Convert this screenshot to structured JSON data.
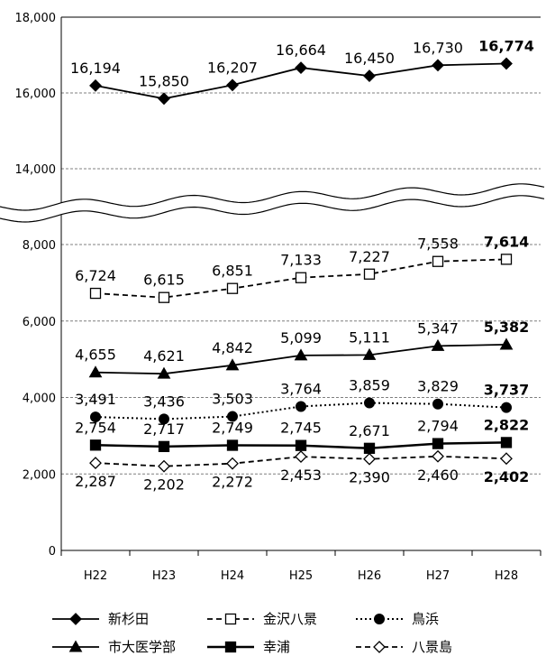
{
  "chart_data": {
    "type": "line",
    "categories": [
      "H22",
      "H23",
      "H24",
      "H25",
      "H26",
      "H27",
      "H28"
    ],
    "y_ticks": [
      "0",
      "2,000",
      "4,000",
      "6,000",
      "8,000",
      "14,000",
      "16,000",
      "18,000"
    ],
    "axis_break": {
      "from": 8000,
      "to": 14000
    },
    "ylim": [
      0,
      18000
    ],
    "grid": "horizontal dashed",
    "legend_position": "bottom",
    "series": [
      {
        "name": "新杉田",
        "values": [
          16194,
          15850,
          16207,
          16664,
          16450,
          16730,
          16774
        ],
        "labels": [
          "16,194",
          "15,850",
          "16,207",
          "16,664",
          "16,450",
          "16,730",
          "16,774"
        ],
        "marker": "diamond-filled",
        "line": "solid",
        "color": "#000000"
      },
      {
        "name": "金沢八景",
        "values": [
          6724,
          6615,
          6851,
          7133,
          7227,
          7558,
          7614
        ],
        "labels": [
          "6,724",
          "6,615",
          "6,851",
          "7,133",
          "7,227",
          "7,558",
          "7,614"
        ],
        "marker": "square-open",
        "line": "dashed",
        "color": "#000000"
      },
      {
        "name": "鳥浜",
        "values": [
          3491,
          3436,
          3503,
          3764,
          3859,
          3829,
          3737
        ],
        "labels": [
          "3,491",
          "3,436",
          "3,503",
          "3,764",
          "3,859",
          "3,829",
          "3,737"
        ],
        "marker": "circle-filled",
        "line": "dotted",
        "color": "#000000"
      },
      {
        "name": "市大医学部",
        "values": [
          4655,
          4621,
          4842,
          5099,
          5111,
          5347,
          5382
        ],
        "labels": [
          "4,655",
          "4,621",
          "4,842",
          "5,099",
          "5,111",
          "5,347",
          "5,382"
        ],
        "marker": "triangle-filled",
        "line": "solid",
        "color": "#000000"
      },
      {
        "name": "幸浦",
        "values": [
          2754,
          2717,
          2749,
          2745,
          2671,
          2794,
          2822
        ],
        "labels": [
          "2,754",
          "2,717",
          "2,749",
          "2,745",
          "2,671",
          "2,794",
          "2,822"
        ],
        "marker": "square-filled",
        "line": "solid-thick",
        "color": "#000000"
      },
      {
        "name": "八景島",
        "values": [
          2287,
          2202,
          2272,
          2453,
          2390,
          2460,
          2402
        ],
        "labels": [
          "2,287",
          "2,202",
          "2,272",
          "2,453",
          "2,390",
          "2,460",
          "2,402"
        ],
        "marker": "diamond-open",
        "line": "dashed",
        "color": "#000000"
      }
    ]
  }
}
